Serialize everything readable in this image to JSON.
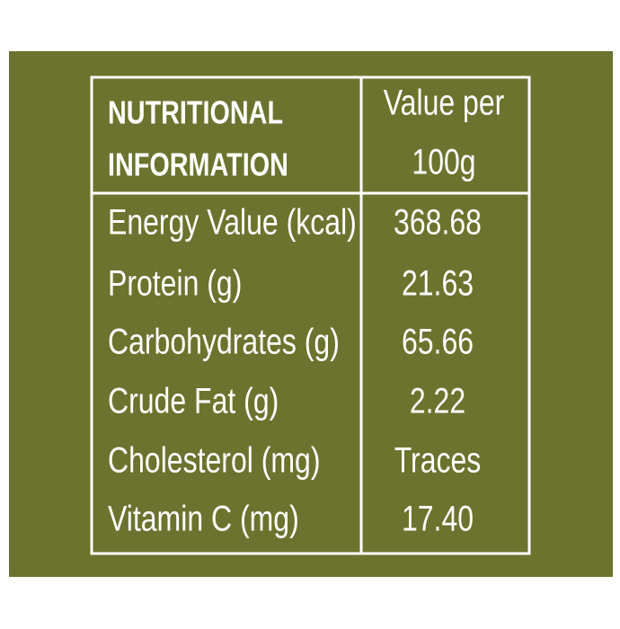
{
  "table": {
    "header": [
      [
        "NUTRITIONAL",
        "INFORMATION"
      ],
      [
        "Value per",
        "100g"
      ]
    ],
    "rows": [
      [
        "Energy Value (kcal)",
        "368.68"
      ],
      [
        "Protein (g)",
        "21.63"
      ],
      [
        "Carbohydrates (g)",
        "65.66"
      ],
      [
        "Crude Fat (g)",
        "2.22"
      ],
      [
        "Cholesterol (mg)",
        "Traces"
      ],
      [
        "Vitamin C (mg)",
        "17.40"
      ]
    ]
  }
}
